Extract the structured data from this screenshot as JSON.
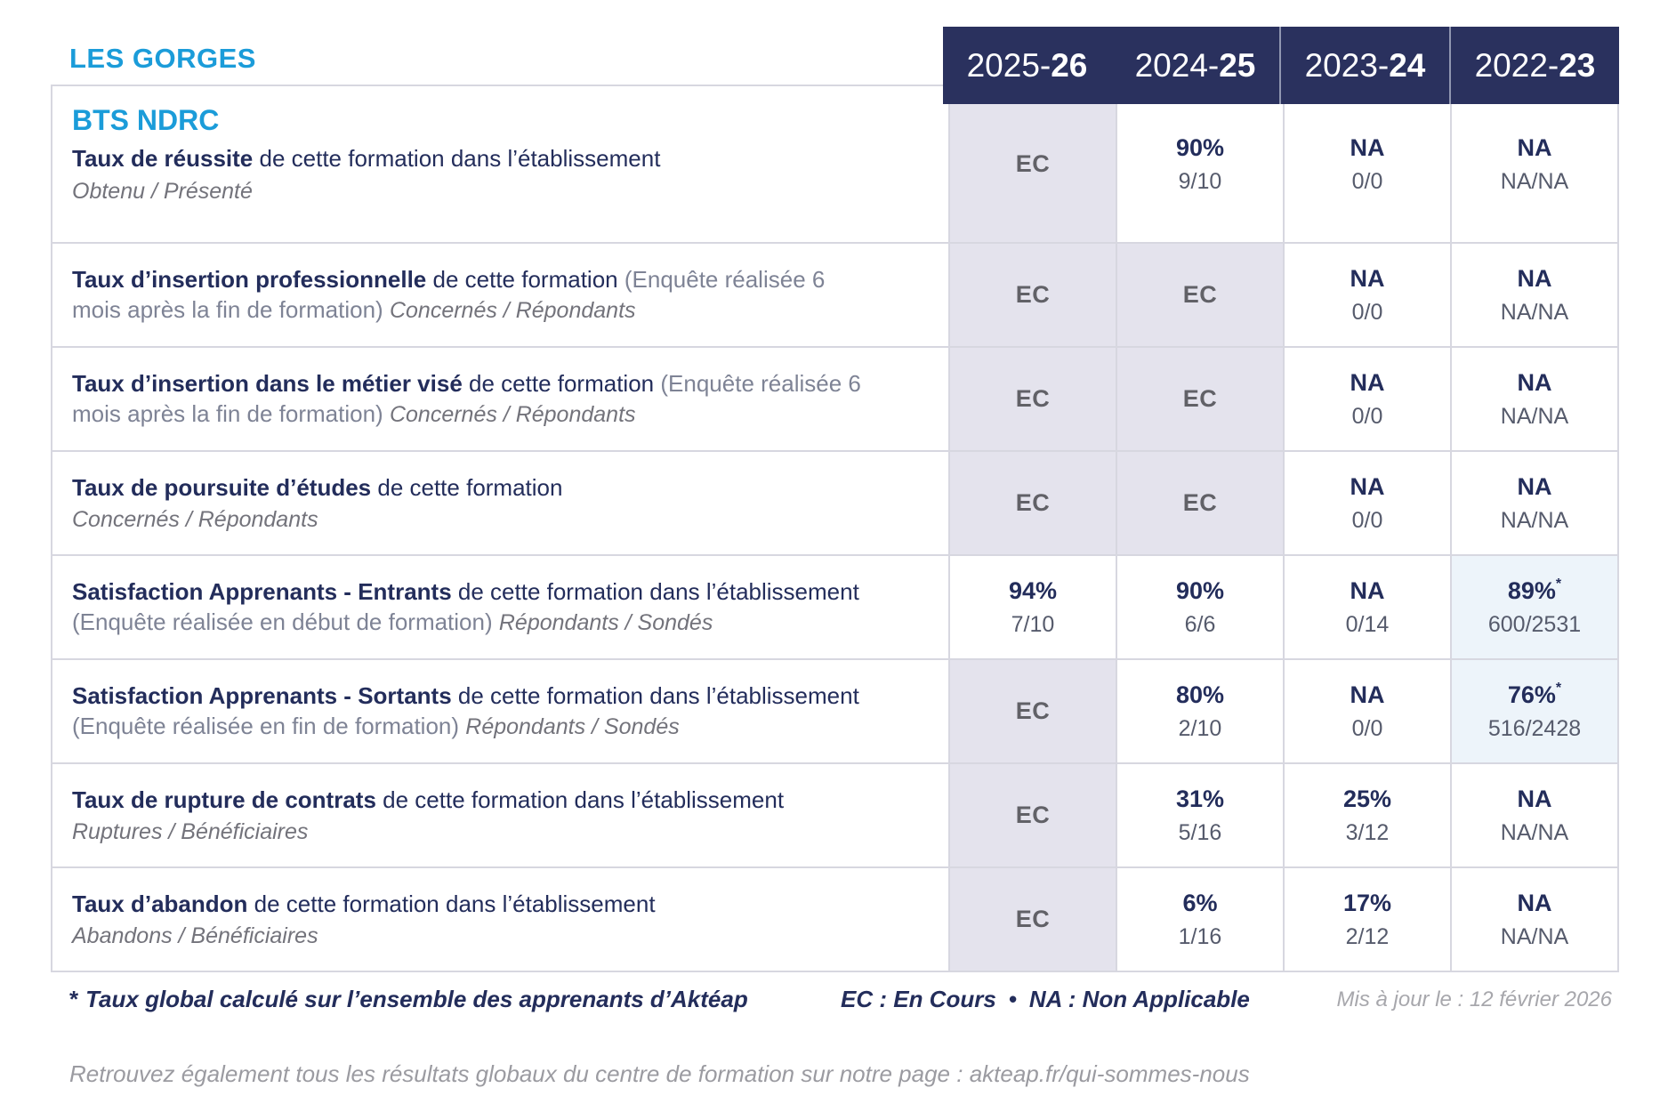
{
  "header": {
    "establishment": "LES GORGES",
    "program": "BTS NDRC"
  },
  "columns": [
    {
      "prefix": "2025-",
      "suffix": "26"
    },
    {
      "prefix": "2024-",
      "suffix": "25"
    },
    {
      "prefix": "2023-",
      "suffix": "24"
    },
    {
      "prefix": "2022-",
      "suffix": "23"
    }
  ],
  "rows": [
    {
      "program_title": "BTS NDRC",
      "title": "Taux de réussite",
      "desc": "de cette formation dans l’établissement",
      "paren": "",
      "subtitle": "Obtenu / Présenté",
      "subtitle_inline": false,
      "cells": [
        {
          "main": "EC",
          "sub": "",
          "bg": "ec"
        },
        {
          "main": "90%",
          "sub": "9/10",
          "bg": "white"
        },
        {
          "main": "NA",
          "sub": "0/0",
          "bg": "white"
        },
        {
          "main": "NA",
          "sub": "NA/NA",
          "bg": "white"
        }
      ]
    },
    {
      "program_title": "",
      "title": "Taux d’insertion professionnelle",
      "desc": "de cette formation",
      "paren": "(Enquête réalisée 6 mois après la fin de formation)",
      "subtitle": "Concernés / Répondants",
      "subtitle_inline": true,
      "cells": [
        {
          "main": "EC",
          "sub": "",
          "bg": "ec"
        },
        {
          "main": "EC",
          "sub": "",
          "bg": "ec"
        },
        {
          "main": "NA",
          "sub": "0/0",
          "bg": "white"
        },
        {
          "main": "NA",
          "sub": "NA/NA",
          "bg": "white"
        }
      ]
    },
    {
      "program_title": "",
      "title": "Taux d’insertion dans le métier visé",
      "desc": "de cette formation",
      "paren": "(Enquête réalisée 6 mois après la fin de formation)",
      "subtitle": "Concernés / Répondants",
      "subtitle_inline": true,
      "cells": [
        {
          "main": "EC",
          "sub": "",
          "bg": "ec"
        },
        {
          "main": "EC",
          "sub": "",
          "bg": "ec"
        },
        {
          "main": "NA",
          "sub": "0/0",
          "bg": "white"
        },
        {
          "main": "NA",
          "sub": "NA/NA",
          "bg": "white"
        }
      ]
    },
    {
      "program_title": "",
      "title": "Taux de poursuite d’études",
      "desc": "de cette formation",
      "paren": "",
      "subtitle": "Concernés / Répondants",
      "subtitle_inline": false,
      "cells": [
        {
          "main": "EC",
          "sub": "",
          "bg": "ec"
        },
        {
          "main": "EC",
          "sub": "",
          "bg": "ec"
        },
        {
          "main": "NA",
          "sub": "0/0",
          "bg": "white"
        },
        {
          "main": "NA",
          "sub": "NA/NA",
          "bg": "white"
        }
      ]
    },
    {
      "program_title": "",
      "title": "Satisfaction Apprenants - Entrants",
      "desc": "de cette formation dans l’établissement",
      "paren": "(Enquête réalisée en début de formation)",
      "subtitle": "Répondants / Sondés",
      "subtitle_inline": true,
      "cells": [
        {
          "main": "94%",
          "sub": "7/10",
          "bg": "white"
        },
        {
          "main": "90%",
          "sub": "6/6",
          "bg": "white"
        },
        {
          "main": "NA",
          "sub": "0/14",
          "bg": "white"
        },
        {
          "main": "89%",
          "star": "*",
          "sub": "600/2531",
          "bg": "blue"
        }
      ]
    },
    {
      "program_title": "",
      "title": "Satisfaction Apprenants - Sortants",
      "desc": "de cette formation dans l’établissement",
      "paren": "(Enquête réalisée en fin de formation)",
      "subtitle": "Répondants / Sondés",
      "subtitle_inline": true,
      "cells": [
        {
          "main": "EC",
          "sub": "",
          "bg": "ec"
        },
        {
          "main": "80%",
          "sub": "2/10",
          "bg": "white"
        },
        {
          "main": "NA",
          "sub": "0/0",
          "bg": "white"
        },
        {
          "main": "76%",
          "star": "*",
          "sub": "516/2428",
          "bg": "blue"
        }
      ]
    },
    {
      "program_title": "",
      "title": "Taux de rupture de contrats",
      "desc": "de cette formation dans l’établissement",
      "paren": "",
      "subtitle": "Ruptures / Bénéficiaires",
      "subtitle_inline": false,
      "cells": [
        {
          "main": "EC",
          "sub": "",
          "bg": "ec"
        },
        {
          "main": "31%",
          "sub": "5/16",
          "bg": "white"
        },
        {
          "main": "25%",
          "sub": "3/12",
          "bg": "white"
        },
        {
          "main": "NA",
          "sub": "NA/NA",
          "bg": "white"
        }
      ]
    },
    {
      "program_title": "",
      "title": "Taux d’abandon",
      "desc": "de cette formation dans l’établissement",
      "paren": "",
      "subtitle": "Abandons / Bénéficiaires",
      "subtitle_inline": false,
      "cells": [
        {
          "main": "EC",
          "sub": "",
          "bg": "ec"
        },
        {
          "main": "6%",
          "sub": "1/16",
          "bg": "white"
        },
        {
          "main": "17%",
          "sub": "2/12",
          "bg": "white"
        },
        {
          "main": "NA",
          "sub": "NA/NA",
          "bg": "white"
        }
      ]
    }
  ],
  "footer": {
    "star": "*",
    "note": "Taux global calculé sur l’ensemble des apprenants d’Aktéap",
    "legend_ec": "EC : En Cours",
    "legend_sep": "•",
    "legend_na": "NA : Non Applicable",
    "updated": "Mis à jour le : 12 février 2026",
    "global_note": "Retrouvez également tous les résultats globaux du centre de formation sur notre page : akteap.fr/qui-sommes-nous"
  },
  "colors": {
    "accent_cyan": "#1b9cd9",
    "navy_text": "#232d5b",
    "header_bg": "#2a315e",
    "ec_cell_bg": "#e4e3ed",
    "highlight_cell_bg": "#edf4fa",
    "border": "#d7d7e0"
  }
}
